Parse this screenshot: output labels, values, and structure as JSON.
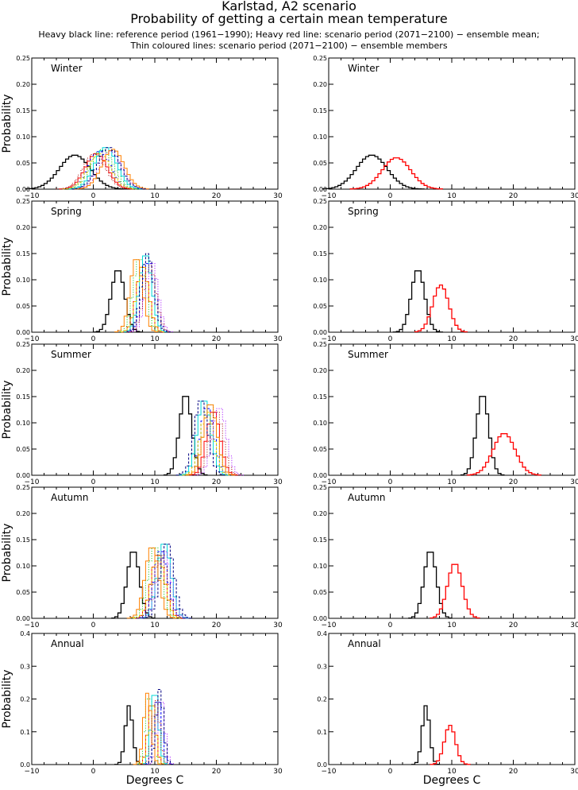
{
  "header": {
    "title": "Karlstad, A2 scenario",
    "subtitle": "Probability of getting a certain mean temperature",
    "note1": "Heavy black line: reference period (1961−1990); Heavy red line: scenario period (2071−2100) − ensemble mean;",
    "note2": "Thin coloured lines: scenario period (2071−2100) − ensemble members"
  },
  "colors": {
    "reference": "#000000",
    "ensemble_mean": "#ff0000",
    "members": [
      "#ff0000",
      "#0000ff",
      "#00c000",
      "#00d8d8",
      "#e0e000",
      "#a000ff",
      "#ff8000",
      "#000080",
      "#a00000"
    ]
  },
  "chart_data": [
    {
      "type": "histogram-step",
      "panel": "left",
      "title": "Winter",
      "xlabel": "",
      "ylabel": "Probability",
      "xlim": [
        -10,
        30
      ],
      "ylim": [
        0,
        0.25
      ],
      "xticks": [
        "−10",
        "0",
        "10",
        "20",
        "30"
      ],
      "yticks": [
        "0.00",
        "0.05",
        "0.10",
        "0.15",
        "0.20",
        "0.25"
      ],
      "series": [
        {
          "role": "reference",
          "peak_x": -3,
          "peak_p": 0.065,
          "spread": 2.5
        },
        {
          "role": "members",
          "centers": [
            0.5,
            1.0,
            1.5,
            2.0,
            1.0,
            2.8,
            3.2,
            2.5,
            0.2
          ],
          "peak_p": 0.08,
          "spread": 1.8
        }
      ]
    },
    {
      "type": "histogram-step",
      "panel": "right",
      "title": "Winter",
      "xlabel": "",
      "ylabel": "",
      "xlim": [
        -10,
        30
      ],
      "ylim": [
        0,
        0.25
      ],
      "xticks": [
        "−10",
        "0",
        "10",
        "20",
        "30"
      ],
      "yticks": [
        "0.00",
        "0.05",
        "0.10",
        "0.15",
        "0.20",
        "0.25"
      ],
      "series": [
        {
          "role": "reference",
          "peak_x": -3,
          "peak_p": 0.065,
          "spread": 2.5
        },
        {
          "role": "ensemble_mean",
          "peak_x": 1,
          "peak_p": 0.06,
          "spread": 2.3
        }
      ]
    },
    {
      "type": "histogram-step",
      "panel": "left",
      "title": "Spring",
      "xlabel": "",
      "ylabel": "Probability",
      "xlim": [
        -10,
        30
      ],
      "ylim": [
        0,
        0.25
      ],
      "xticks": [
        "−10",
        "0",
        "10",
        "20",
        "30"
      ],
      "yticks": [
        "0.00",
        "0.05",
        "0.10",
        "0.15",
        "0.20",
        "0.25"
      ],
      "series": [
        {
          "role": "reference",
          "peak_x": 4,
          "peak_p": 0.12,
          "spread": 1.1
        },
        {
          "role": "members",
          "centers": [
            8.0,
            9.0,
            7.5,
            8.5,
            8.0,
            9.5,
            7.0,
            8.8,
            9.2
          ],
          "peak_p": 0.15,
          "spread": 1.0
        }
      ]
    },
    {
      "type": "histogram-step",
      "panel": "right",
      "title": "Spring",
      "xlabel": "",
      "ylabel": "",
      "xlim": [
        -10,
        30
      ],
      "ylim": [
        0,
        0.25
      ],
      "xticks": [
        "−10",
        "0",
        "10",
        "20",
        "30"
      ],
      "yticks": [
        "0.00",
        "0.05",
        "0.10",
        "0.15",
        "0.20",
        "0.25"
      ],
      "series": [
        {
          "role": "reference",
          "peak_x": 4.5,
          "peak_p": 0.12,
          "spread": 1.1
        },
        {
          "role": "ensemble_mean",
          "peak_x": 8.2,
          "peak_p": 0.09,
          "spread": 1.3
        }
      ]
    },
    {
      "type": "histogram-step",
      "panel": "left",
      "title": "Summer",
      "xlabel": "",
      "ylabel": "Probability",
      "xlim": [
        -10,
        30
      ],
      "ylim": [
        0,
        0.25
      ],
      "xticks": [
        "−10",
        "0",
        "10",
        "20",
        "30"
      ],
      "yticks": [
        "0.00",
        "0.05",
        "0.10",
        "0.15",
        "0.20",
        "0.25"
      ],
      "series": [
        {
          "role": "reference",
          "peak_x": 15,
          "peak_p": 0.155,
          "spread": 1.0
        },
        {
          "role": "members",
          "centers": [
            19.5,
            18.5,
            19.0,
            18.0,
            18.5,
            20.5,
            19.0,
            17.5,
            20.0
          ],
          "peak_p": 0.145,
          "spread": 1.1
        }
      ]
    },
    {
      "type": "histogram-step",
      "panel": "right",
      "title": "Summer",
      "xlabel": "",
      "ylabel": "",
      "xlim": [
        -10,
        30
      ],
      "ylim": [
        0,
        0.25
      ],
      "xticks": [
        "−10",
        "0",
        "10",
        "20",
        "30"
      ],
      "yticks": [
        "0.00",
        "0.05",
        "0.10",
        "0.15",
        "0.20",
        "0.25"
      ],
      "series": [
        {
          "role": "reference",
          "peak_x": 15,
          "peak_p": 0.155,
          "spread": 1.0
        },
        {
          "role": "ensemble_mean",
          "peak_x": 18.5,
          "peak_p": 0.08,
          "spread": 1.8
        }
      ]
    },
    {
      "type": "histogram-step",
      "panel": "left",
      "title": "Autumn",
      "xlabel": "",
      "ylabel": "Probability",
      "xlim": [
        -10,
        30
      ],
      "ylim": [
        0,
        0.25
      ],
      "xticks": [
        "−10",
        "0",
        "10",
        "20",
        "30"
      ],
      "yticks": [
        "0.00",
        "0.05",
        "0.10",
        "0.15",
        "0.20",
        "0.25"
      ],
      "series": [
        {
          "role": "reference",
          "peak_x": 6.5,
          "peak_p": 0.13,
          "spread": 1.0
        },
        {
          "role": "members",
          "centers": [
            10.5,
            11.0,
            10.0,
            11.5,
            10.5,
            11.5,
            9.5,
            12.0,
            11.0
          ],
          "peak_p": 0.145,
          "spread": 1.1
        }
      ]
    },
    {
      "type": "histogram-step",
      "panel": "right",
      "title": "Autumn",
      "xlabel": "",
      "ylabel": "",
      "xlim": [
        -10,
        30
      ],
      "ylim": [
        0,
        0.25
      ],
      "xticks": [
        "−10",
        "0",
        "10",
        "20",
        "30"
      ],
      "yticks": [
        "0.00",
        "0.05",
        "0.10",
        "0.15",
        "0.20",
        "0.25"
      ],
      "series": [
        {
          "role": "reference",
          "peak_x": 6.5,
          "peak_p": 0.13,
          "spread": 1.0
        },
        {
          "role": "ensemble_mean",
          "peak_x": 10.5,
          "peak_p": 0.105,
          "spread": 1.2
        }
      ]
    },
    {
      "type": "histogram-step",
      "panel": "left",
      "title": "Annual",
      "xlabel": "Degrees C",
      "ylabel": "Probability",
      "xlim": [
        -10,
        30
      ],
      "ylim": [
        0,
        0.4
      ],
      "xticks": [
        "−10",
        "0",
        "10",
        "20",
        "30"
      ],
      "yticks": [
        "0.0",
        "0.1",
        "0.2",
        "0.3",
        "0.4"
      ],
      "series": [
        {
          "role": "reference",
          "peak_x": 5.8,
          "peak_p": 0.18,
          "spread": 0.6
        },
        {
          "role": "members",
          "centers": [
            9.5,
            10.5,
            9.0,
            10.0,
            9.5,
            11.0,
            8.8,
            10.8,
            10.2
          ],
          "peak_p": 0.23,
          "spread": 0.6
        }
      ]
    },
    {
      "type": "histogram-step",
      "panel": "right",
      "title": "Annual",
      "xlabel": "Degrees C",
      "ylabel": "",
      "xlim": [
        -10,
        30
      ],
      "ylim": [
        0,
        0.4
      ],
      "xticks": [
        "−10",
        "0",
        "10",
        "20",
        "30"
      ],
      "yticks": [
        "0.0",
        "0.1",
        "0.2",
        "0.3",
        "0.4"
      ],
      "series": [
        {
          "role": "reference",
          "peak_x": 5.8,
          "peak_p": 0.18,
          "spread": 0.6
        },
        {
          "role": "ensemble_mean",
          "peak_x": 9.7,
          "peak_p": 0.12,
          "spread": 0.9
        }
      ]
    }
  ]
}
